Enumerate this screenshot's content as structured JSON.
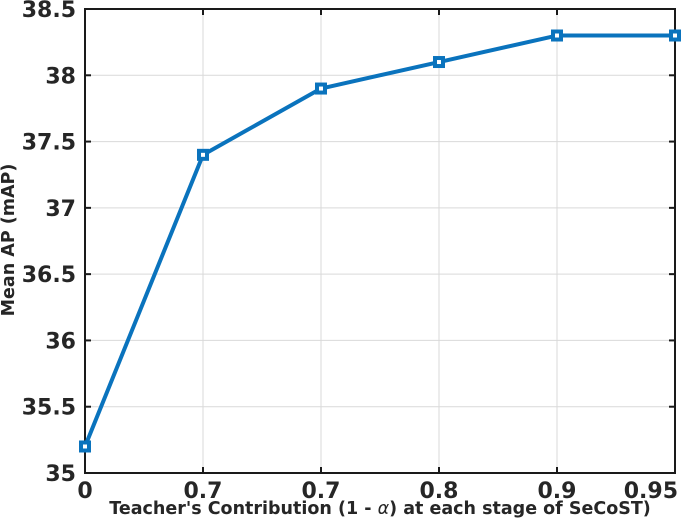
{
  "chart_data": {
    "type": "line",
    "title": "",
    "xlabel": "Teacher's Contribution (1 - α) at each stage of SeCoST)",
    "xlabel_parts": {
      "pre": "Teacher's Contribution (1 - ",
      "alpha": "α",
      "post": ") at each stage of SeCoST)"
    },
    "ylabel": "Mean AP (mAP)",
    "x_tick_labels": [
      "0",
      "0.7",
      "0.7",
      "0.8",
      "0.9",
      "0.95"
    ],
    "y_ticks": [
      35,
      35.5,
      36,
      36.5,
      37,
      37.5,
      38,
      38.5
    ],
    "y_tick_labels": [
      "35",
      "35.5",
      "36",
      "36.5",
      "37",
      "37.5",
      "38",
      "38.5"
    ],
    "ylim": [
      35,
      38.5
    ],
    "series": [
      {
        "name": "Mean AP",
        "values": [
          35.2,
          37.4,
          37.9,
          38.1,
          38.3,
          38.3
        ]
      }
    ],
    "legend": "none",
    "grid": true,
    "marker": "square",
    "colors": {
      "line": "#0a73bd",
      "marker_center": "#ffffff",
      "grid": "#d9d9d9",
      "axis": "#1a1a1a",
      "text": "#262626"
    }
  }
}
